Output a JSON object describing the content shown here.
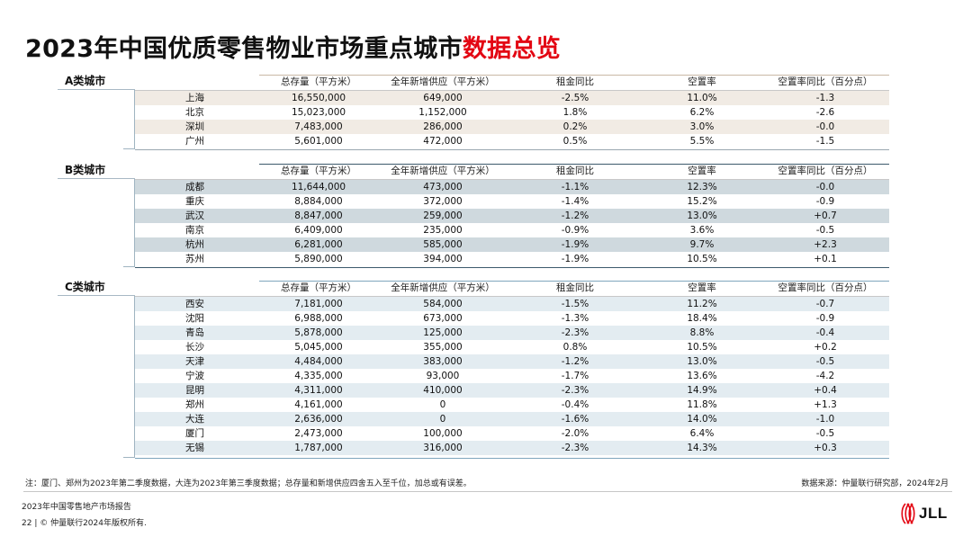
{
  "page_title": {
    "main": "2023年中国优质零售物业市场重点城市",
    "highlight": "数据总览"
  },
  "columns": [
    "总存量（平方米）",
    "全年新增供应（平方米）",
    "租金同比",
    "空置率",
    "空置率同比（百分点）"
  ],
  "groups": [
    {
      "label": "A类城市",
      "rows": [
        [
          "上海",
          "16,550,000",
          "649,000",
          "-2.5%",
          "11.0%",
          "-1.3"
        ],
        [
          "北京",
          "15,023,000",
          "1,152,000",
          "1.8%",
          "6.2%",
          "-2.6"
        ],
        [
          "深圳",
          "7,483,000",
          "286,000",
          "0.2%",
          "3.0%",
          "-0.0"
        ],
        [
          "广州",
          "5,601,000",
          "472,000",
          "0.5%",
          "5.5%",
          "-1.5"
        ]
      ]
    },
    {
      "label": "B类城市",
      "rows": [
        [
          "成都",
          "11,644,000",
          "473,000",
          "-1.1%",
          "12.3%",
          "-0.0"
        ],
        [
          "重庆",
          "8,884,000",
          "372,000",
          "-1.4%",
          "15.2%",
          "-0.9"
        ],
        [
          "武汉",
          "8,847,000",
          "259,000",
          "-1.2%",
          "13.0%",
          "+0.7"
        ],
        [
          "南京",
          "6,409,000",
          "235,000",
          "-0.9%",
          "3.6%",
          "-0.5"
        ],
        [
          "杭州",
          "6,281,000",
          "585,000",
          "-1.9%",
          "9.7%",
          "+2.3"
        ],
        [
          "苏州",
          "5,890,000",
          "394,000",
          "-1.9%",
          "10.5%",
          "+0.1"
        ]
      ]
    },
    {
      "label": "C类城市",
      "rows": [
        [
          "西安",
          "7,181,000",
          "584,000",
          "-1.5%",
          "11.2%",
          "-0.7"
        ],
        [
          "沈阳",
          "6,988,000",
          "673,000",
          "-1.3%",
          "18.4%",
          "-0.9"
        ],
        [
          "青岛",
          "5,878,000",
          "125,000",
          "-2.3%",
          "8.8%",
          "-0.4"
        ],
        [
          "长沙",
          "5,045,000",
          "355,000",
          "0.8%",
          "10.5%",
          "+0.2"
        ],
        [
          "天津",
          "4,484,000",
          "383,000",
          "-1.2%",
          "13.0%",
          "-0.5"
        ],
        [
          "宁波",
          "4,335,000",
          "93,000",
          "-1.7%",
          "13.6%",
          "-4.2"
        ],
        [
          "昆明",
          "4,311,000",
          "410,000",
          "-2.3%",
          "14.9%",
          "+0.4"
        ],
        [
          "郑州",
          "4,161,000",
          "0",
          "-0.4%",
          "11.8%",
          "+1.3"
        ],
        [
          "大连",
          "2,636,000",
          "0",
          "-1.6%",
          "14.0%",
          "-1.0"
        ],
        [
          "厦门",
          "2,473,000",
          "100,000",
          "-2.0%",
          "6.4%",
          "-0.5"
        ],
        [
          "无锡",
          "1,787,000",
          "316,000",
          "-2.3%",
          "14.3%",
          "+0.3"
        ]
      ]
    }
  ],
  "footnote": "注：厦门、郑州为2023年第二季度数据，大连为2023年第三季度数据；总存量和新增供应四舍五入至千位，加总或有误差。",
  "source": "数据来源：仲量联行研究部，2024年2月",
  "report_name": "2023年中国零售地产市场报告",
  "copyright": "22 | © 仲量联行2024年版权所有.",
  "logo_text": "JLL",
  "colors": {
    "highlight": "#e30613",
    "group_a_header_line": "#c9b8a6",
    "group_b_header_line": "#3d5a6c",
    "group_c_header_line": "#7fa6bd",
    "logo_red": "#e30613"
  }
}
